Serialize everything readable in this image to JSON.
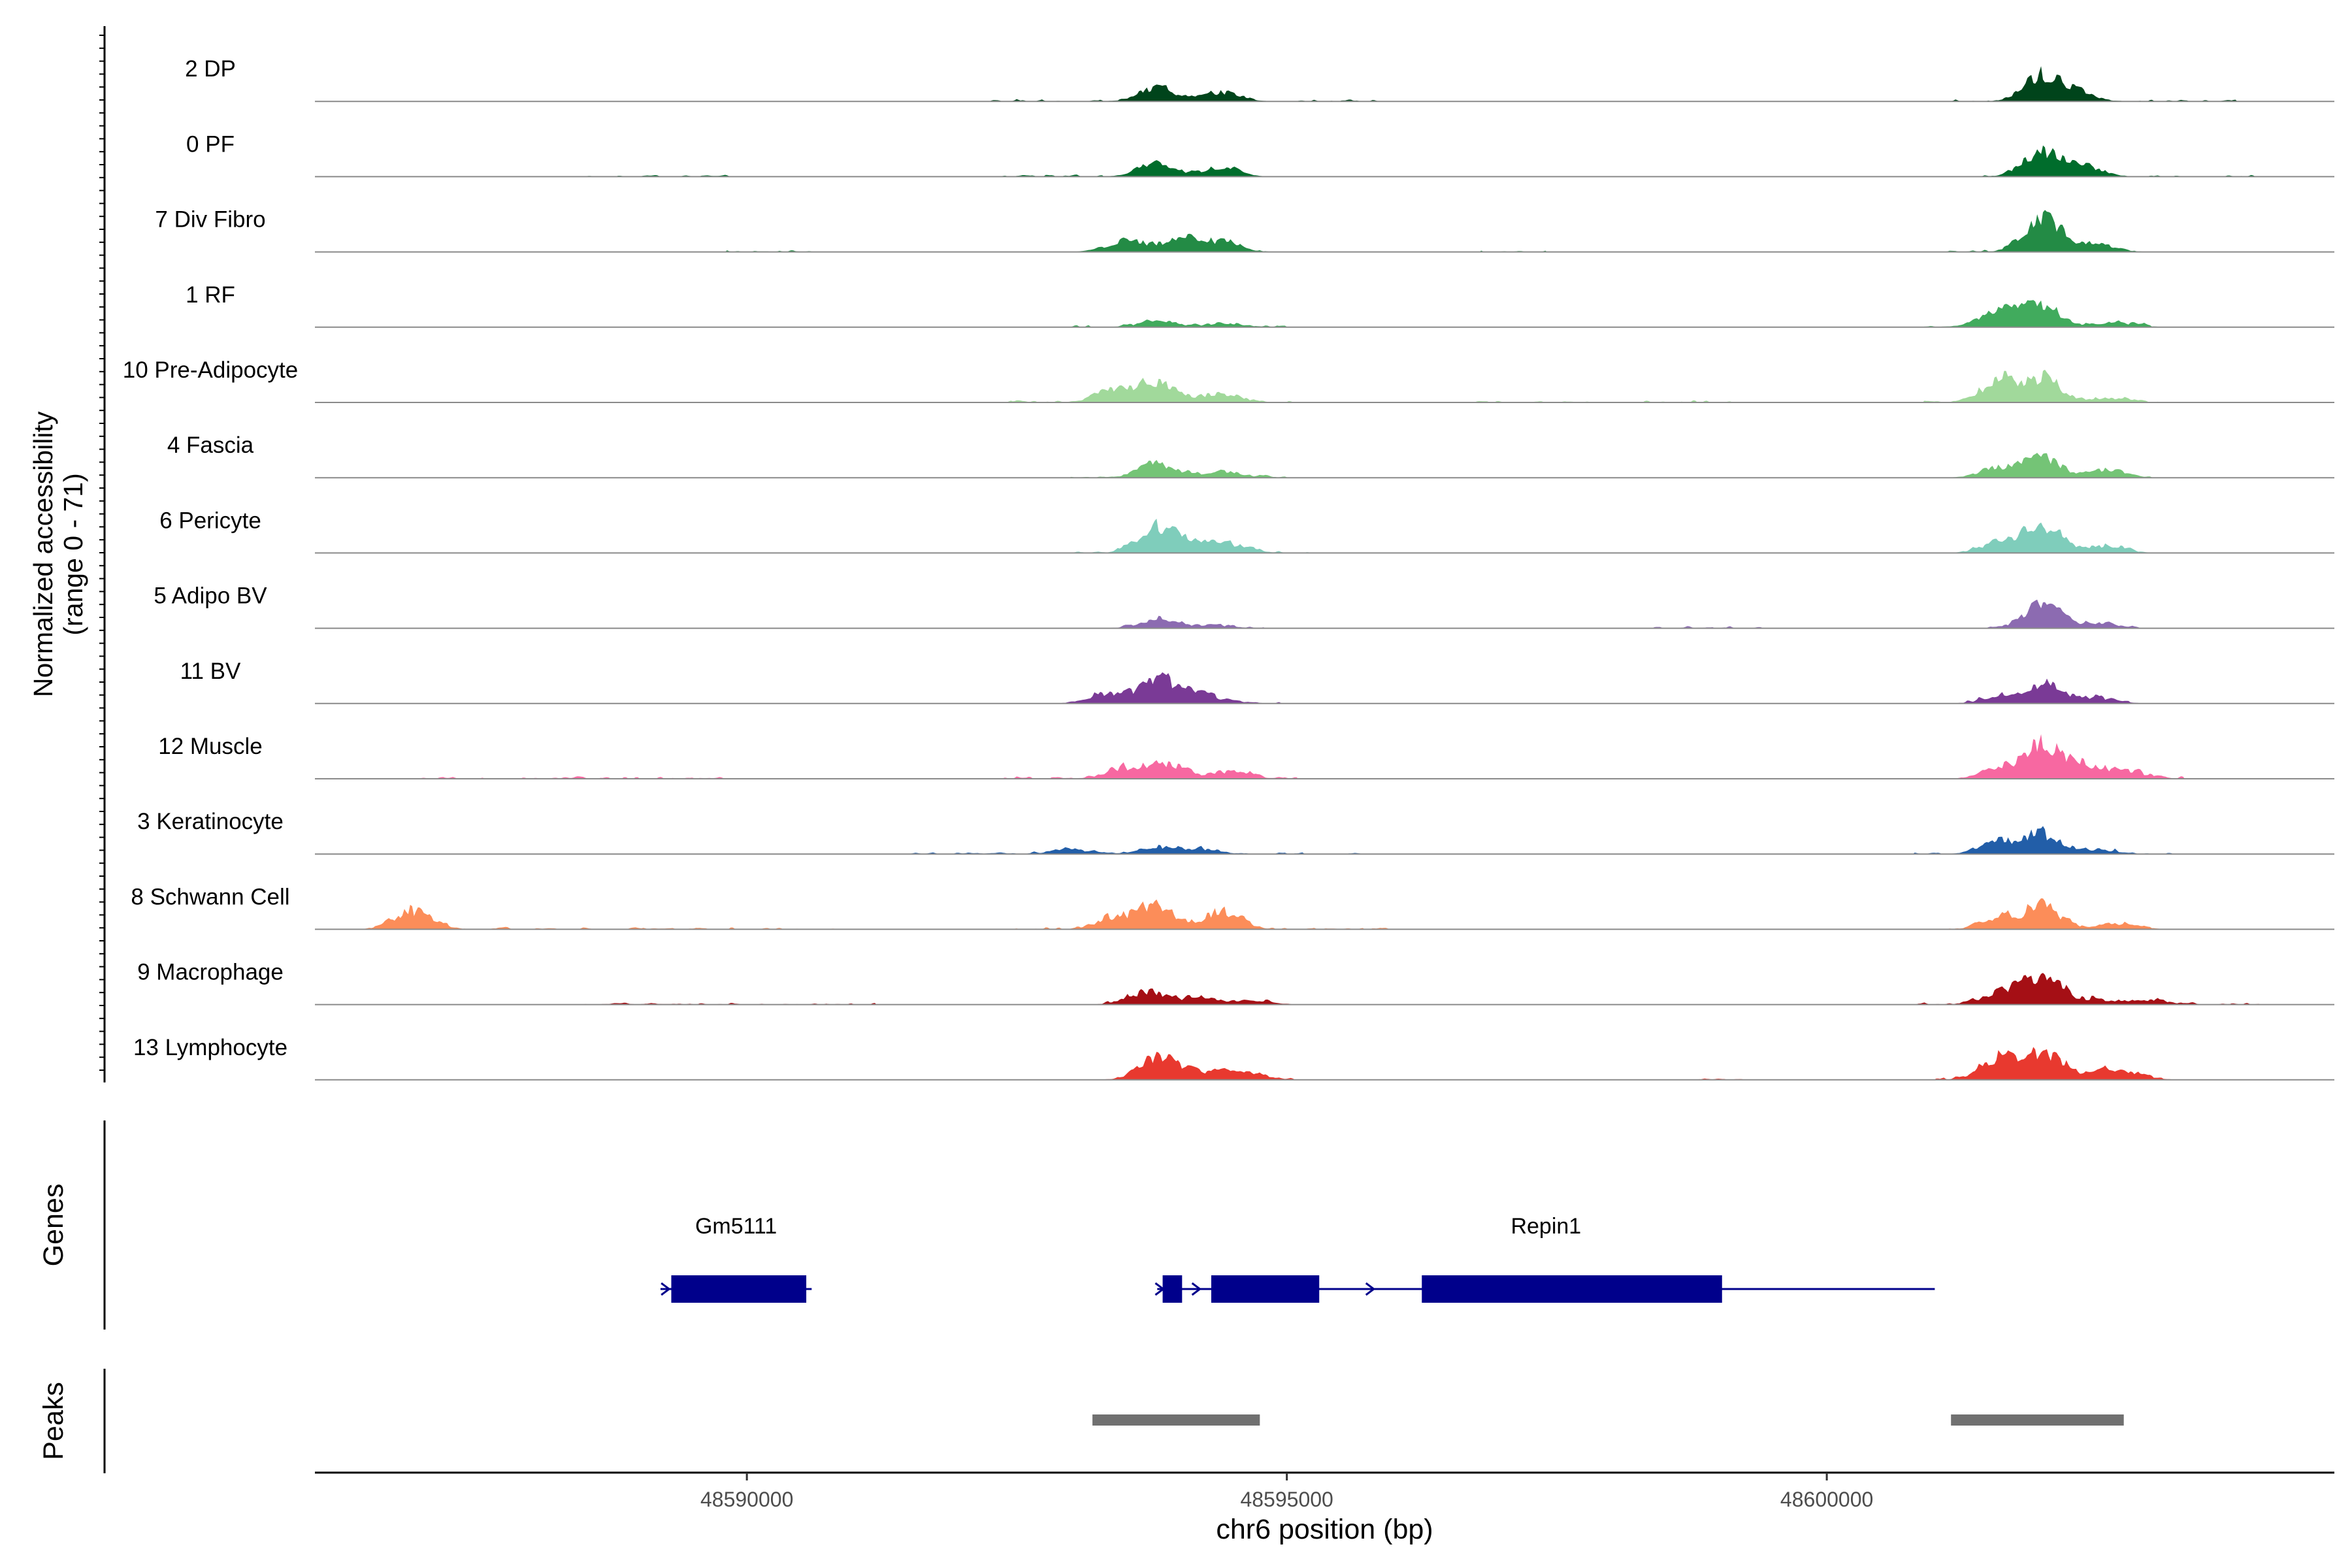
{
  "chart_data": {
    "type": "area",
    "subtype": "genome-browser coverage tracks",
    "xlabel": "chr6 position (bp)",
    "ylabel": "Normalized accessibility",
    "ylabel_range": "(range 0 - 71)",
    "ylim": [
      0,
      71
    ],
    "xlim": [
      48586000,
      48604700
    ],
    "x_ticks": [
      48590000,
      48595000,
      48600000
    ],
    "x_tick_labels": [
      "48590000",
      "48595000",
      "48600000"
    ],
    "tracks": [
      {
        "name": "2 DP",
        "color": "#00441b",
        "peaks": [
          [
            48593800,
            16
          ],
          [
            48594400,
            11
          ],
          [
            48602000,
            30
          ],
          [
            48602300,
            11
          ]
        ],
        "noise": [
          [
            48592200,
            48593300
          ],
          [
            48595100,
            48596000
          ],
          [
            48601100,
            48601500
          ],
          [
            48602800,
            48603800
          ]
        ]
      },
      {
        "name": "0 PF",
        "color": "#006d2c",
        "peaks": [
          [
            48593800,
            16
          ],
          [
            48594400,
            11
          ],
          [
            48602000,
            30
          ],
          [
            48602400,
            11
          ]
        ],
        "noise": [
          [
            48588500,
            48589900
          ],
          [
            48592100,
            48593300
          ],
          [
            48601400,
            48601700
          ],
          [
            48602900,
            48604000
          ]
        ]
      },
      {
        "name": "7 Div Fibro",
        "color": "#238b45",
        "peaks": [
          [
            48593500,
            13
          ],
          [
            48594000,
            16
          ],
          [
            48594400,
            12
          ],
          [
            48602000,
            41
          ],
          [
            48602500,
            9
          ]
        ],
        "noise": [
          [
            48589800,
            48590600
          ],
          [
            48596800,
            48597400
          ],
          [
            48601100,
            48601700
          ]
        ]
      },
      {
        "name": "1 RF",
        "color": "#41ab5d",
        "peaks": [
          [
            48593800,
            6
          ],
          [
            48594400,
            4
          ],
          [
            48601600,
            19
          ],
          [
            48602000,
            24
          ],
          [
            48602700,
            5
          ]
        ],
        "noise": [
          [
            48593000,
            48595000
          ],
          [
            48600800,
            48603000
          ]
        ]
      },
      {
        "name": "10 Pre-Adipocyte",
        "color": "#a1d99b",
        "peaks": [
          [
            48593400,
            15
          ],
          [
            48593800,
            21
          ],
          [
            48594400,
            10
          ],
          [
            48601600,
            25
          ],
          [
            48602000,
            28
          ],
          [
            48602600,
            5
          ]
        ],
        "noise": [
          [
            48592300,
            48595100
          ],
          [
            48596700,
            48597800
          ],
          [
            48598300,
            48599300
          ],
          [
            48600900,
            48603200
          ]
        ]
      },
      {
        "name": "4 Fascia",
        "color": "#74c476",
        "peaks": [
          [
            48593800,
            16
          ],
          [
            48594400,
            8
          ],
          [
            48601600,
            12
          ],
          [
            48602000,
            21
          ],
          [
            48602600,
            9
          ]
        ],
        "noise": [
          [
            48593000,
            48595000
          ],
          [
            48601300,
            48603000
          ]
        ]
      },
      {
        "name": "6 Pericyte",
        "color": "#7fcdbb",
        "peaks": [
          [
            48593800,
            31
          ],
          [
            48594200,
            10
          ],
          [
            48594500,
            8
          ],
          [
            48601600,
            13
          ],
          [
            48602000,
            33
          ],
          [
            48602600,
            8
          ]
        ],
        "noise": [
          [
            48592800,
            48595200
          ],
          [
            48601200,
            48602900
          ]
        ]
      },
      {
        "name": "5 Adipo BV",
        "color": "#8c6bb1",
        "peaks": [
          [
            48593800,
            10
          ],
          [
            48594300,
            4
          ],
          [
            48602000,
            28
          ],
          [
            48602500,
            5
          ]
        ],
        "noise": [
          [
            48593300,
            48594800
          ],
          [
            48598400,
            48599400
          ],
          [
            48601400,
            48602900
          ]
        ]
      },
      {
        "name": "11 BV",
        "color": "#7a3a96",
        "peaks": [
          [
            48593300,
            9
          ],
          [
            48593800,
            28
          ],
          [
            48594200,
            12
          ],
          [
            48601600,
            8
          ],
          [
            48602000,
            22
          ],
          [
            48602500,
            7
          ]
        ],
        "noise": [
          [
            48593000,
            48595100
          ],
          [
            48601300,
            48602800
          ]
        ]
      },
      {
        "name": "12 Muscle",
        "color": "#f768a1",
        "peaks": [
          [
            48593500,
            12
          ],
          [
            48593900,
            17
          ],
          [
            48594500,
            9
          ],
          [
            48601600,
            11
          ],
          [
            48602000,
            42
          ],
          [
            48602400,
            16
          ],
          [
            48602800,
            8
          ]
        ],
        "noise": [
          [
            48586900,
            48589900
          ],
          [
            48592300,
            48595100
          ],
          [
            48601000,
            48603300
          ]
        ]
      },
      {
        "name": "3 Keratinocyte",
        "color": "#225ea8",
        "peaks": [
          [
            48593000,
            6
          ],
          [
            48593800,
            8
          ],
          [
            48594200,
            5
          ],
          [
            48601600,
            14
          ],
          [
            48602000,
            22
          ],
          [
            48602500,
            5
          ]
        ],
        "noise": [
          [
            48591500,
            48595700
          ],
          [
            48600800,
            48603200
          ]
        ]
      },
      {
        "name": "8 Schwann Cell",
        "color": "#fc8d59",
        "peaks": [
          [
            48586900,
            22
          ],
          [
            48593400,
            13
          ],
          [
            48593800,
            26
          ],
          [
            48594400,
            20
          ],
          [
            48601600,
            13
          ],
          [
            48602000,
            26
          ],
          [
            48602700,
            7
          ]
        ],
        "noise": [
          [
            48586800,
            48591000
          ],
          [
            48592200,
            48596000
          ],
          [
            48601000,
            48603000
          ]
        ]
      },
      {
        "name": "9 Macrophage",
        "color": "#a50f15",
        "peaks": [
          [
            48593700,
            14
          ],
          [
            48594200,
            9
          ],
          [
            48594700,
            4
          ],
          [
            48601600,
            14
          ],
          [
            48602000,
            36
          ],
          [
            48602500,
            6
          ],
          [
            48603000,
            5
          ]
        ],
        "noise": [
          [
            48588500,
            48591200
          ],
          [
            48593300,
            48595000
          ],
          [
            48600800,
            48604000
          ]
        ]
      },
      {
        "name": "13 Lymphocyte",
        "color": "#e8392f",
        "peaks": [
          [
            48593800,
            26
          ],
          [
            48594200,
            8
          ],
          [
            48594600,
            9
          ],
          [
            48601600,
            24
          ],
          [
            48602000,
            33
          ],
          [
            48602500,
            9
          ],
          [
            48602800,
            7
          ]
        ],
        "noise": [
          [
            48593800,
            48595100
          ],
          [
            48598800,
            48599300
          ],
          [
            48601000,
            48603100
          ]
        ]
      }
    ],
    "genes_track": {
      "label": "Genes",
      "genes": [
        {
          "name": "Gm5111",
          "start": 48589200,
          "end": 48590600,
          "strand": "+",
          "exons": [
            [
              48589300,
              48590550
            ]
          ]
        },
        {
          "name": "Repin1",
          "start": 48593800,
          "end": 48601000,
          "strand": "+",
          "exons": [
            [
              48593850,
              48594030
            ],
            [
              48594300,
              48595300
            ],
            [
              48596250,
              48599030
            ]
          ]
        }
      ]
    },
    "peaks_track": {
      "label": "Peaks",
      "color": "#707070",
      "regions": [
        [
          48593200,
          48594750
        ],
        [
          48601150,
          48602750
        ]
      ]
    }
  }
}
